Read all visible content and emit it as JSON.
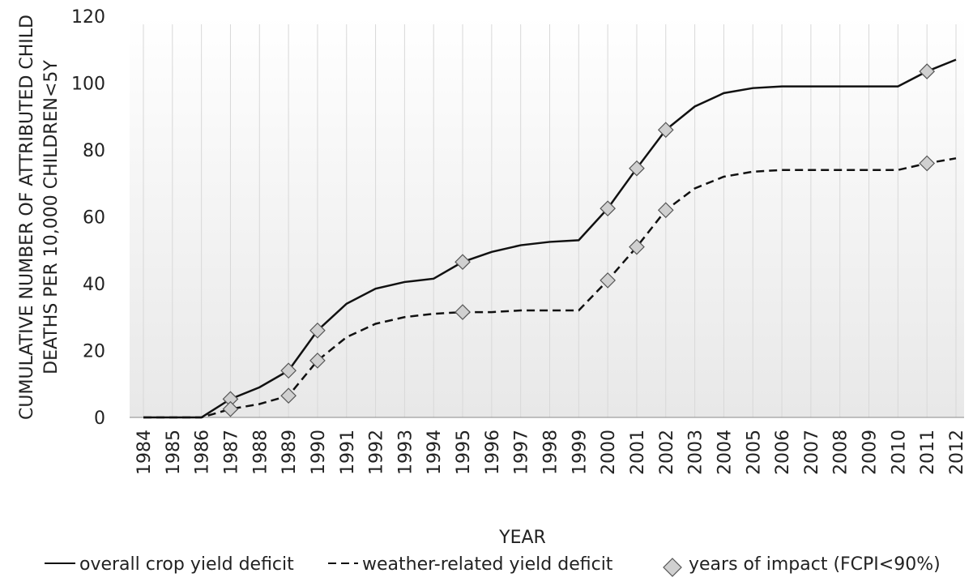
{
  "chart_data": {
    "type": "line",
    "ylabel": [
      "CUMULATIVE NUMBER OF ATTRIBUTED CHILD",
      "DEATHS  PER 10,000 CHILDREN<5Y"
    ],
    "xlabel": "YEAR",
    "categories": [
      "1984",
      "1985",
      "1986",
      "1987",
      "1988",
      "1989",
      "1990",
      "1991",
      "1992",
      "1993",
      "1994",
      "1995",
      "1996",
      "1997",
      "1998",
      "1999",
      "2000",
      "2001",
      "2002",
      "2003",
      "2004",
      "2005",
      "2006",
      "2007",
      "2008",
      "2009",
      "2010",
      "2011",
      "2012"
    ],
    "series": [
      {
        "name": "overall crop yield deficit",
        "color": "#111111",
        "dash": "solid",
        "values": [
          0,
          0,
          0,
          5.5,
          9,
          14,
          26,
          34,
          38.5,
          40.5,
          41.5,
          46.5,
          49.5,
          51.5,
          52.5,
          53,
          62.5,
          74.5,
          86,
          93,
          97,
          98.5,
          99,
          99,
          99,
          99,
          99,
          103.5,
          107
        ]
      },
      {
        "name": "weather-related yield deficit",
        "color": "#111111",
        "dash": "dashed",
        "values": [
          0,
          0,
          0,
          2.5,
          4,
          6.5,
          17,
          24,
          28,
          30,
          31,
          31.5,
          31.5,
          32,
          32,
          32,
          41,
          51,
          62,
          68.5,
          72,
          73.5,
          74,
          74,
          74,
          74,
          74,
          76,
          77.5
        ]
      }
    ],
    "impact_marker": {
      "name": "years of impact (FCPI<90%)",
      "color": "#d0d0d0",
      "years": [
        "1987",
        "1989",
        "1990",
        "1995",
        "2000",
        "2001",
        "2002",
        "2011"
      ]
    },
    "ylim": [
      0,
      120
    ],
    "yticks": [
      0,
      20,
      40,
      60,
      80,
      100,
      120
    ],
    "grid": "vertical"
  }
}
